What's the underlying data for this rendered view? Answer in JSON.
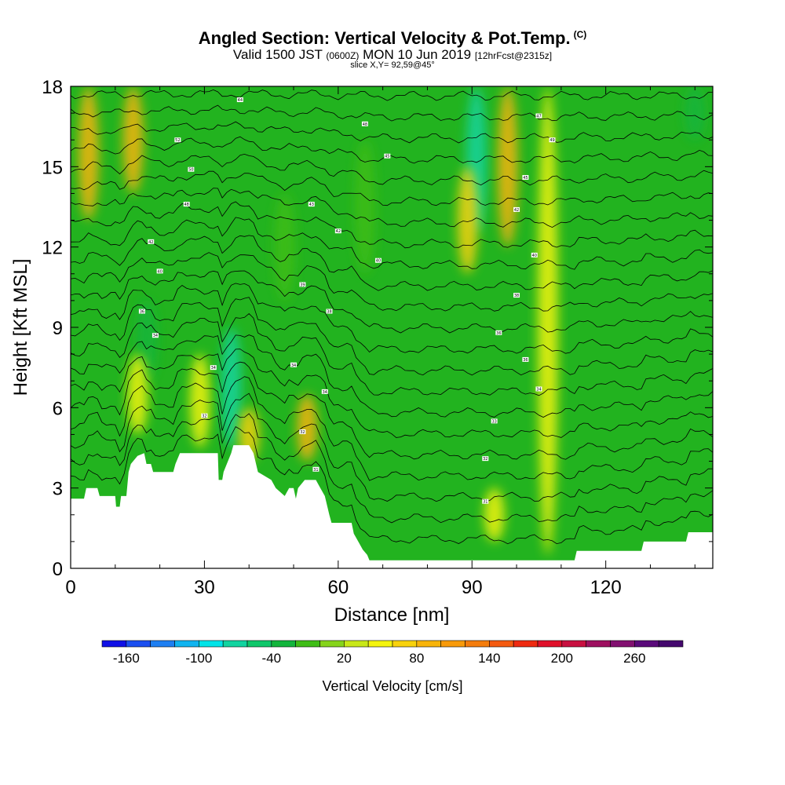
{
  "header": {
    "title": "Angled Section: Vertical Velocity & Pot.Temp.",
    "title_mark": "(C)",
    "valid_prefix": "Valid 1500 JST",
    "valid_utc": "(0600Z)",
    "valid_date": "MON 10 Jun 2019",
    "forecast": "[12hrFcst@2315z]",
    "slice": "slice X,Y= 92,59@45°"
  },
  "colors": {
    "plot_background": "#22b31f",
    "terrain": "#ffffff",
    "contour": "#000000"
  },
  "chart_data": {
    "type": "heatmap",
    "xlabel": "Distance [nm]",
    "ylabel": "Height [Kft MSL]",
    "xlim": [
      0,
      144
    ],
    "ylim": [
      0,
      18
    ],
    "x_ticks": [
      0,
      30,
      60,
      90,
      120
    ],
    "y_ticks": [
      0,
      3,
      6,
      9,
      12,
      15,
      18
    ],
    "colorbar": {
      "title": "Vertical Velocity [cm/s]",
      "labels": [
        "-160",
        "-100",
        "-40",
        "20",
        "80",
        "140",
        "200",
        "260"
      ],
      "min": -180,
      "max": 300,
      "step": 20,
      "colors": [
        "#1010e6",
        "#1b4ff0",
        "#1e7ff2",
        "#10b4f0",
        "#00e4e8",
        "#12d4a0",
        "#0fc76a",
        "#12b53c",
        "#3fbd16",
        "#86d41b",
        "#c8e818",
        "#f4f40d",
        "#f8d20c",
        "#f8b40a",
        "#f89a0a",
        "#f47c0c",
        "#f45a10",
        "#ef2a10",
        "#e0102a",
        "#c81040",
        "#9e1060",
        "#821070",
        "#5a0a7a",
        "#44086e"
      ]
    },
    "vertical_velocity_features": [
      {
        "x": 4,
        "z_bottom": 13.0,
        "z_top": 18.0,
        "value": 80
      },
      {
        "x": 14,
        "z_bottom": 14.0,
        "z_top": 18.0,
        "value": 80
      },
      {
        "x": 17,
        "z_bottom": 7.0,
        "z_top": 10.0,
        "value": -40
      },
      {
        "x": 15,
        "z_bottom": 5.0,
        "z_top": 8.0,
        "value": 40
      },
      {
        "x": 29,
        "z_bottom": 4.5,
        "z_top": 8.0,
        "value": 40
      },
      {
        "x": 36,
        "z_bottom": 4.5,
        "z_top": 9.0,
        "value": -80
      },
      {
        "x": 40,
        "z_bottom": 4.0,
        "z_top": 6.0,
        "value": 60
      },
      {
        "x": 53,
        "z_bottom": 4.0,
        "z_top": 6.5,
        "value": 80
      },
      {
        "x": 48,
        "z_bottom": 10.0,
        "z_top": 14.0,
        "value": -20
      },
      {
        "x": 66,
        "z_bottom": 11.0,
        "z_top": 16.0,
        "value": -20
      },
      {
        "x": 91,
        "z_bottom": 12.5,
        "z_top": 18.0,
        "value": -80
      },
      {
        "x": 98,
        "z_bottom": 12.0,
        "z_top": 18.0,
        "value": 80
      },
      {
        "x": 89,
        "z_bottom": 11.0,
        "z_top": 15.0,
        "value": 60
      },
      {
        "x": 107,
        "z_bottom": 0.5,
        "z_top": 18.0,
        "value": 40
      },
      {
        "x": 95,
        "z_bottom": 1.0,
        "z_top": 3.0,
        "value": 40
      },
      {
        "x": 140,
        "z_bottom": 16.0,
        "z_top": 18.0,
        "value": -40
      }
    ],
    "terrain_height": [
      {
        "x": 0,
        "z": 2.6
      },
      {
        "x": 3,
        "z": 2.6
      },
      {
        "x": 3.5,
        "z": 3.0
      },
      {
        "x": 6,
        "z": 3.0
      },
      {
        "x": 6.5,
        "z": 2.7
      },
      {
        "x": 10,
        "z": 2.7
      },
      {
        "x": 10.2,
        "z": 2.3
      },
      {
        "x": 11,
        "z": 2.3
      },
      {
        "x": 11.3,
        "z": 2.7
      },
      {
        "x": 12.5,
        "z": 2.7
      },
      {
        "x": 13,
        "z": 3.6
      },
      {
        "x": 13.5,
        "z": 3.9
      },
      {
        "x": 15,
        "z": 4.2
      },
      {
        "x": 16.5,
        "z": 4.3
      },
      {
        "x": 17,
        "z": 3.9
      },
      {
        "x": 18,
        "z": 3.9
      },
      {
        "x": 18.5,
        "z": 3.6
      },
      {
        "x": 23,
        "z": 3.6
      },
      {
        "x": 23.5,
        "z": 3.9
      },
      {
        "x": 24.5,
        "z": 4.3
      },
      {
        "x": 33,
        "z": 4.3
      },
      {
        "x": 33.2,
        "z": 3.3
      },
      {
        "x": 34,
        "z": 3.3
      },
      {
        "x": 34.3,
        "z": 3.6
      },
      {
        "x": 36,
        "z": 4.3
      },
      {
        "x": 36.5,
        "z": 4.6
      },
      {
        "x": 40,
        "z": 4.6
      },
      {
        "x": 41,
        "z": 4.3
      },
      {
        "x": 42,
        "z": 3.6
      },
      {
        "x": 45,
        "z": 3.3
      },
      {
        "x": 46,
        "z": 3.0
      },
      {
        "x": 48,
        "z": 2.7
      },
      {
        "x": 49,
        "z": 3.0
      },
      {
        "x": 50,
        "z": 3.0
      },
      {
        "x": 50.5,
        "z": 2.6
      },
      {
        "x": 51,
        "z": 3.0
      },
      {
        "x": 52.5,
        "z": 3.3
      },
      {
        "x": 55,
        "z": 3.3
      },
      {
        "x": 56,
        "z": 3.0
      },
      {
        "x": 57,
        "z": 2.7
      },
      {
        "x": 58,
        "z": 2.0
      },
      {
        "x": 58.5,
        "z": 1.7
      },
      {
        "x": 63,
        "z": 1.7
      },
      {
        "x": 63.5,
        "z": 1.3
      },
      {
        "x": 64.5,
        "z": 1.0
      },
      {
        "x": 65.5,
        "z": 0.7
      },
      {
        "x": 66.5,
        "z": 0.5
      },
      {
        "x": 67,
        "z": 0.3
      },
      {
        "x": 113,
        "z": 0.3
      },
      {
        "x": 113.5,
        "z": 0.65
      },
      {
        "x": 128,
        "z": 0.65
      },
      {
        "x": 128.5,
        "z": 1.0
      },
      {
        "x": 138,
        "z": 1.0
      },
      {
        "x": 138.5,
        "z": 1.35
      },
      {
        "x": 144,
        "z": 1.35
      }
    ],
    "pot_temp_contours": {
      "base_at_surface": 30,
      "interval": 1,
      "top_at_18kft": 52
    },
    "contour_labels": [
      {
        "x": 38,
        "z": 17.5,
        "text": "44"
      },
      {
        "x": 66,
        "z": 16.6,
        "text": "48"
      },
      {
        "x": 105,
        "z": 16.9,
        "text": "47"
      },
      {
        "x": 24,
        "z": 16.0,
        "text": "52"
      },
      {
        "x": 108,
        "z": 16.0,
        "text": "49"
      },
      {
        "x": 71,
        "z": 15.4,
        "text": "45"
      },
      {
        "x": 27,
        "z": 14.9,
        "text": "50"
      },
      {
        "x": 102,
        "z": 14.6,
        "text": "45"
      },
      {
        "x": 26,
        "z": 13.6,
        "text": "48"
      },
      {
        "x": 54,
        "z": 13.6,
        "text": "43"
      },
      {
        "x": 100,
        "z": 13.4,
        "text": "42"
      },
      {
        "x": 60,
        "z": 12.6,
        "text": "42"
      },
      {
        "x": 18,
        "z": 12.2,
        "text": "42"
      },
      {
        "x": 104,
        "z": 11.7,
        "text": "40"
      },
      {
        "x": 69,
        "z": 11.5,
        "text": "40"
      },
      {
        "x": 20,
        "z": 11.1,
        "text": "40"
      },
      {
        "x": 52,
        "z": 10.6,
        "text": "39"
      },
      {
        "x": 100,
        "z": 10.2,
        "text": "38"
      },
      {
        "x": 16,
        "z": 9.6,
        "text": "36"
      },
      {
        "x": 58,
        "z": 9.6,
        "text": "38"
      },
      {
        "x": 96,
        "z": 8.8,
        "text": "36"
      },
      {
        "x": 19,
        "z": 8.7,
        "text": "34"
      },
      {
        "x": 102,
        "z": 7.8,
        "text": "36"
      },
      {
        "x": 50,
        "z": 7.6,
        "text": "34"
      },
      {
        "x": 32,
        "z": 7.5,
        "text": "34"
      },
      {
        "x": 105,
        "z": 6.7,
        "text": "34"
      },
      {
        "x": 57,
        "z": 6.6,
        "text": "34"
      },
      {
        "x": 30,
        "z": 5.7,
        "text": "32"
      },
      {
        "x": 95,
        "z": 5.5,
        "text": "33"
      },
      {
        "x": 52,
        "z": 5.1,
        "text": "32"
      },
      {
        "x": 93,
        "z": 4.1,
        "text": "32"
      },
      {
        "x": 55,
        "z": 3.7,
        "text": "31"
      },
      {
        "x": 93,
        "z": 2.5,
        "text": "31"
      }
    ]
  }
}
